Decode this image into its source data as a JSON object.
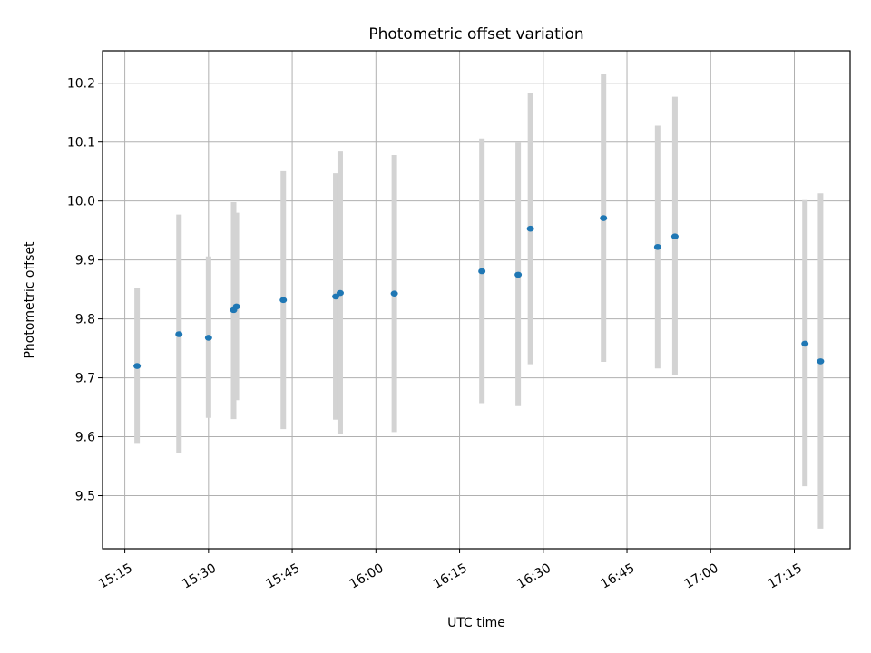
{
  "chart_data": {
    "type": "scatter",
    "title": "Photometric offset variation",
    "xlabel": "UTC time",
    "ylabel": "Photometric offset",
    "grid": true,
    "legend": "none",
    "xlim": [
      "15:11",
      "17:25"
    ],
    "ylim": [
      9.41,
      10.255
    ],
    "x_ticks": [
      "15:15",
      "15:30",
      "15:45",
      "16:00",
      "16:15",
      "16:30",
      "16:45",
      "17:00",
      "17:15"
    ],
    "y_ticks": [
      "9.5",
      "9.6",
      "9.7",
      "9.8",
      "9.9",
      "10.0",
      "10.1",
      "10.2"
    ],
    "series": [
      {
        "marker_color": "#1f77b4",
        "errorbar_color": "#d3d3d3",
        "points": [
          {
            "x": "15:17:12",
            "y": 9.72,
            "y_low": 9.588,
            "y_high": 9.853
          },
          {
            "x": "15:24:42",
            "y": 9.774,
            "y_low": 9.572,
            "y_high": 9.977
          },
          {
            "x": "15:30:00",
            "y": 9.768,
            "y_low": 9.632,
            "y_high": 9.906
          },
          {
            "x": "15:34:30",
            "y": 9.815,
            "y_low": 9.63,
            "y_high": 9.998
          },
          {
            "x": "15:35:00",
            "y": 9.821,
            "y_low": 9.662,
            "y_high": 9.98
          },
          {
            "x": "15:43:24",
            "y": 9.832,
            "y_low": 9.613,
            "y_high": 10.052
          },
          {
            "x": "15:52:48",
            "y": 9.838,
            "y_low": 9.629,
            "y_high": 10.047
          },
          {
            "x": "15:53:36",
            "y": 9.844,
            "y_low": 9.604,
            "y_high": 10.084
          },
          {
            "x": "16:03:18",
            "y": 9.843,
            "y_low": 9.608,
            "y_high": 10.078
          },
          {
            "x": "16:19:00",
            "y": 9.881,
            "y_low": 9.657,
            "y_high": 10.106
          },
          {
            "x": "16:25:30",
            "y": 9.875,
            "y_low": 9.652,
            "y_high": 10.099
          },
          {
            "x": "16:27:42",
            "y": 9.953,
            "y_low": 9.723,
            "y_high": 10.183
          },
          {
            "x": "16:40:48",
            "y": 9.971,
            "y_low": 9.727,
            "y_high": 10.215
          },
          {
            "x": "16:50:30",
            "y": 9.922,
            "y_low": 9.716,
            "y_high": 10.128
          },
          {
            "x": "16:53:36",
            "y": 9.94,
            "y_low": 9.704,
            "y_high": 10.177
          },
          {
            "x": "17:16:54",
            "y": 9.758,
            "y_low": 9.516,
            "y_high": 10.003
          },
          {
            "x": "17:19:42",
            "y": 9.728,
            "y_low": 9.444,
            "y_high": 10.013
          }
        ]
      }
    ]
  }
}
